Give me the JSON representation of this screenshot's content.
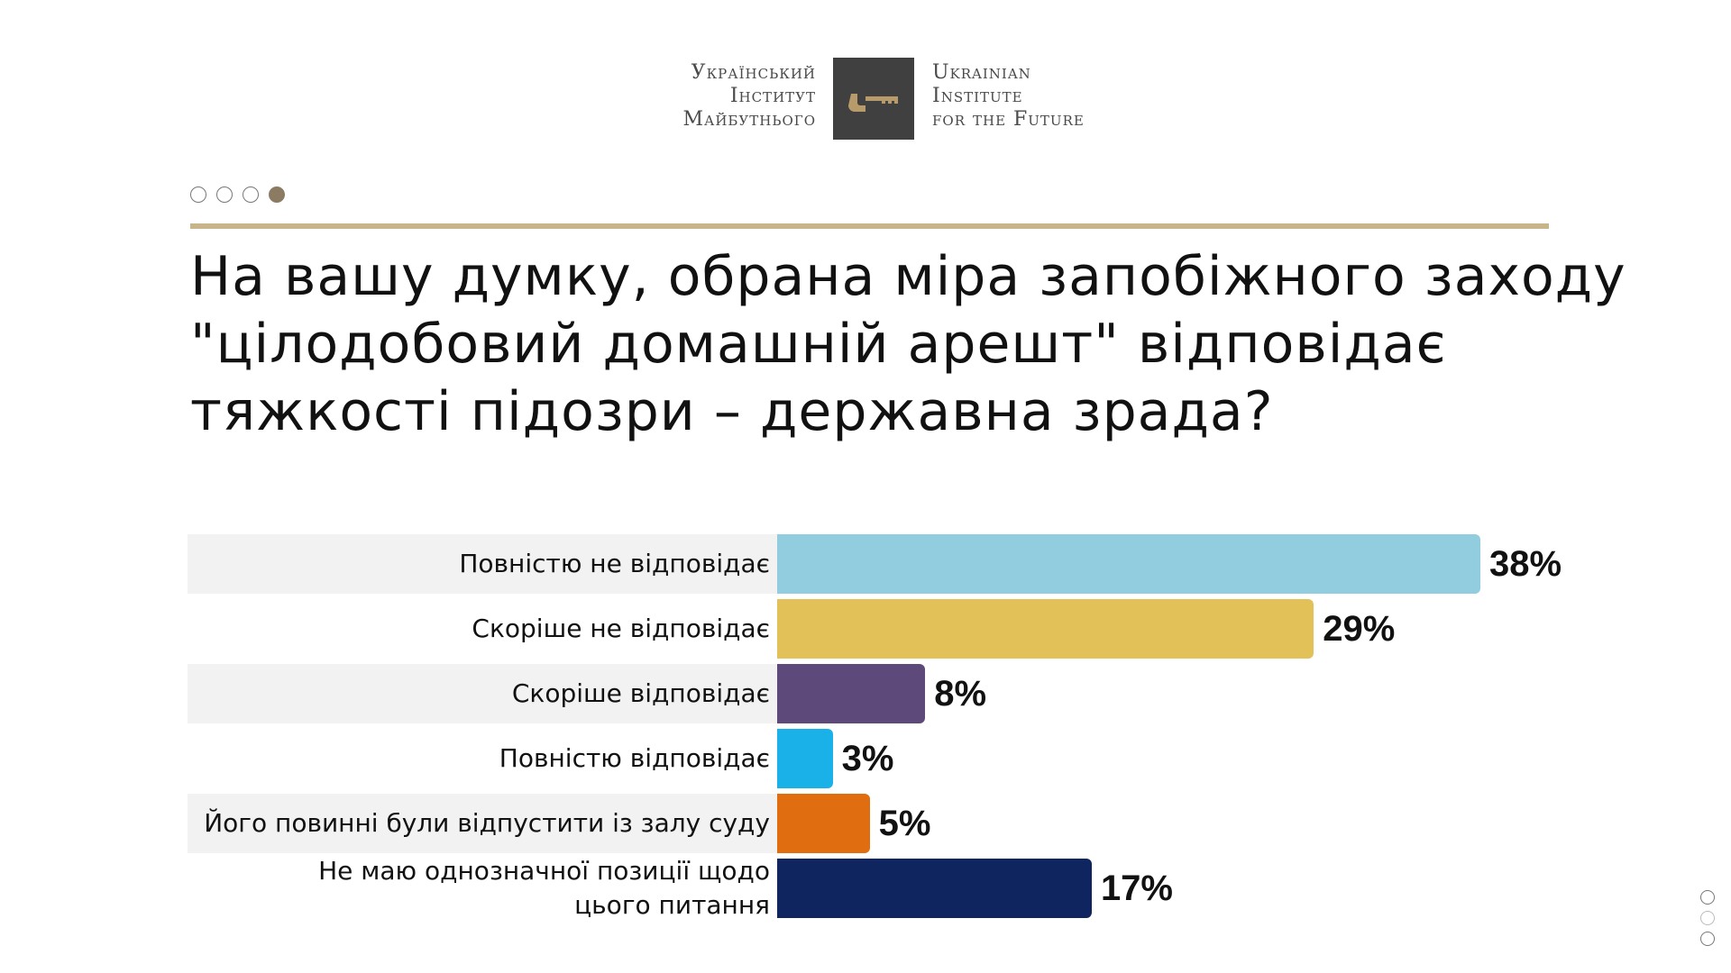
{
  "logo": {
    "ua_lines": [
      "Український",
      "Інститут",
      "Майбутнього"
    ],
    "en_lines": [
      "Ukrainian",
      "Institute",
      "for the Future"
    ]
  },
  "pager": {
    "total": 4,
    "active": 4
  },
  "side_pager": {
    "total": 3
  },
  "chart_data": {
    "type": "bar",
    "orientation": "horizontal",
    "title": "На вашу думку, обрана міра запобіжного заходу \"цілодобовий домашній арешт\" відповідає тяжкості підозри – державна зрада?",
    "title_lines": [
      "На вашу думку, обрана міра запобіжного заходу",
      "\"цілодобовий домашній арешт\" відповідає",
      "тяжкості підозри – державна зрада?"
    ],
    "categories": [
      "Повністю не відповідає",
      "Скоріше не відповідає",
      "Скоріше відповідає",
      "Повністю відповідає",
      "Його повинні були відпустити із залу суду",
      "Не маю однозначної позиції щодо цього питання"
    ],
    "values": [
      38,
      29,
      8,
      3,
      5,
      17
    ],
    "value_labels": [
      "38%",
      "29%",
      "8%",
      "3%",
      "5%",
      "17%"
    ],
    "colors": [
      "#92cddf",
      "#e2c158",
      "#5e4a7a",
      "#19b1e8",
      "#e06d10",
      "#0f2560"
    ],
    "unit": "%",
    "xlim": [
      0,
      38
    ],
    "grid": false
  }
}
